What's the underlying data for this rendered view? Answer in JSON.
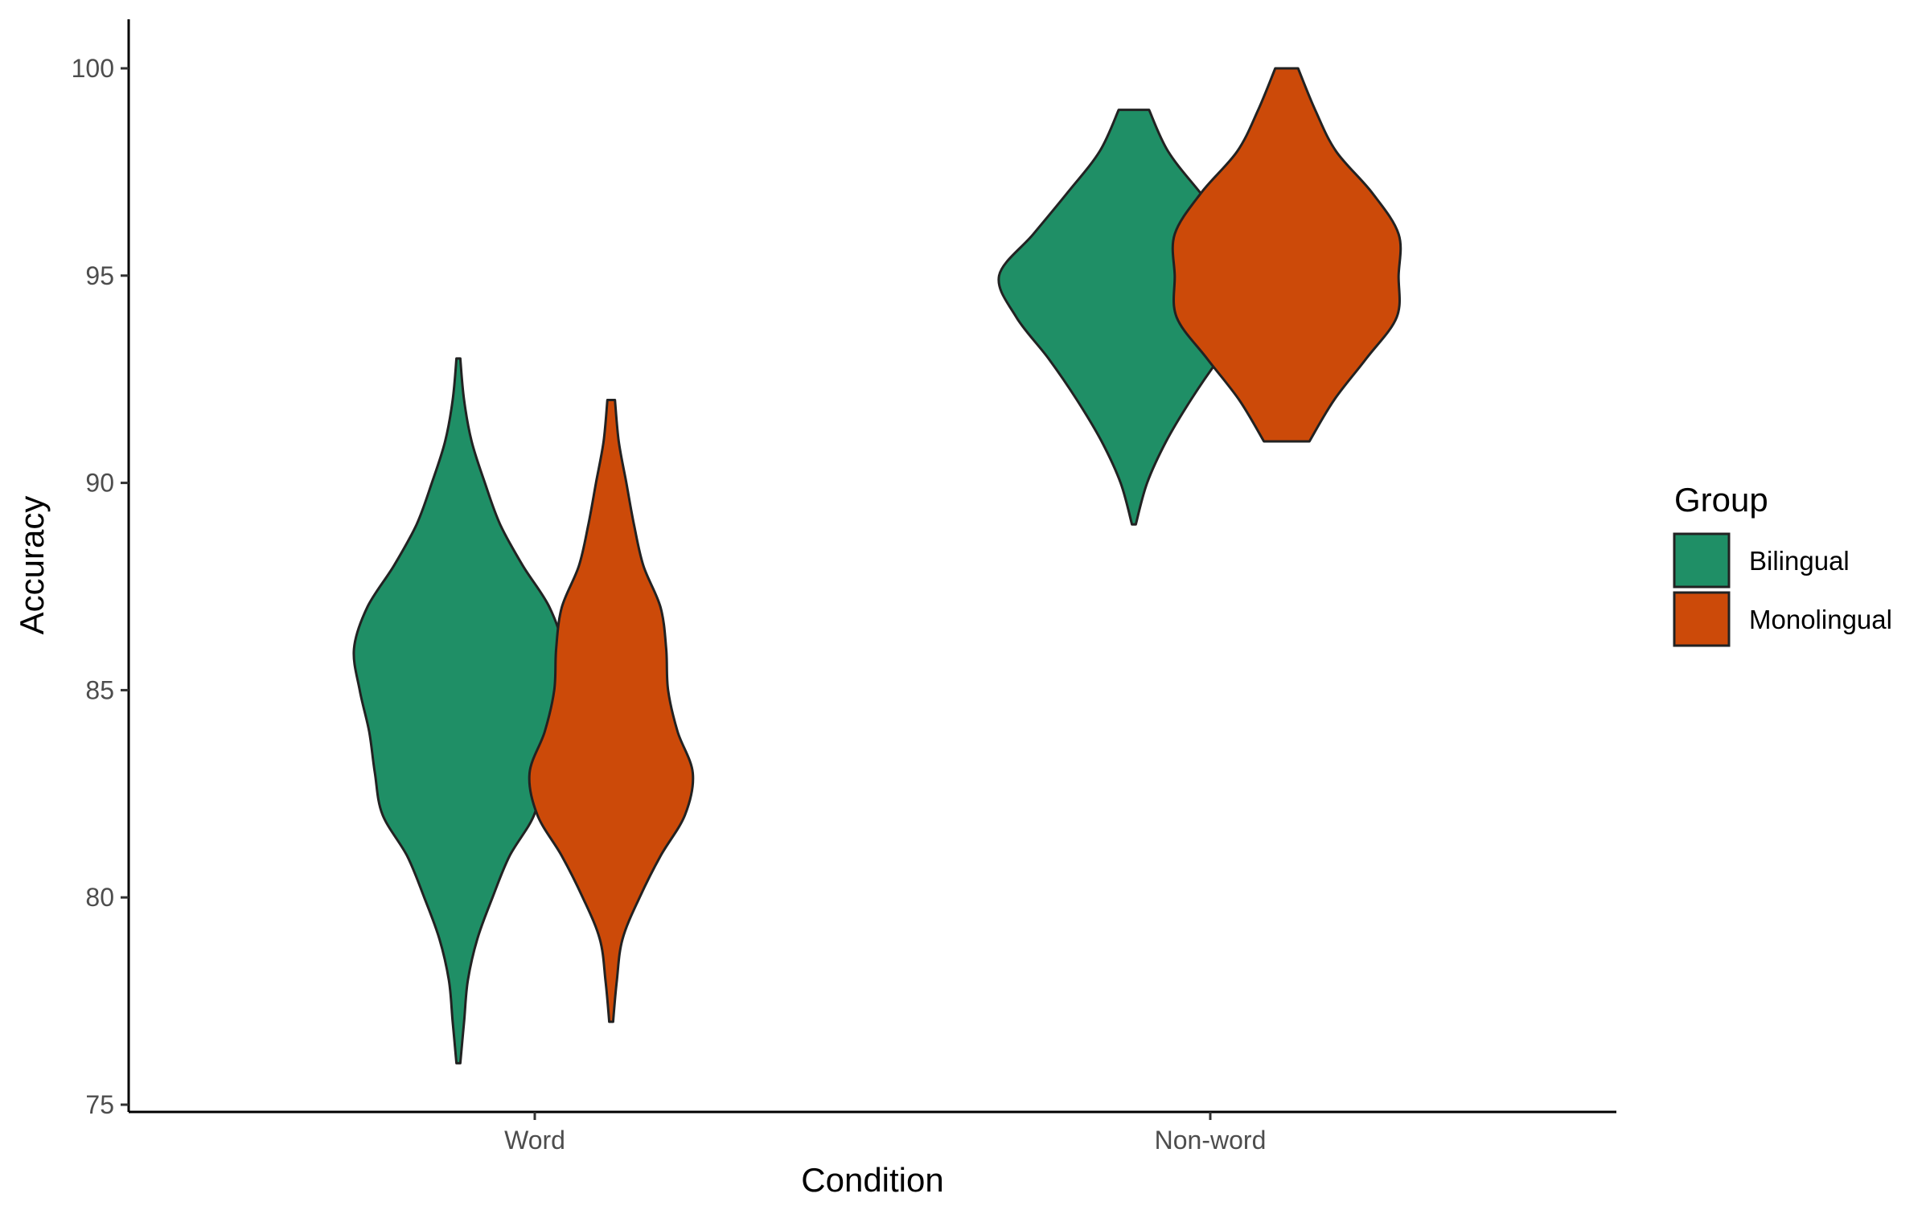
{
  "chart_data": {
    "type": "violin",
    "xlabel": "Condition",
    "ylabel": "Accuracy",
    "categories": [
      "Word",
      "Non-word"
    ],
    "ylim": [
      75,
      100
    ],
    "yticks": [
      75,
      80,
      85,
      90,
      95,
      100
    ],
    "grid": false,
    "legend": {
      "title": "Group",
      "position": "right",
      "entries": [
        {
          "name": "Bilingual",
          "color": "#1f8f66"
        },
        {
          "name": "Monolingual",
          "color": "#cc4a09"
        }
      ]
    },
    "series": [
      {
        "name": "Bilingual",
        "color": "#1f8f66",
        "distributions": [
          {
            "category": "Word",
            "min": 76,
            "max": 93,
            "density": [
              [
                76,
                0.01
              ],
              [
                77,
                0.03
              ],
              [
                78,
                0.05
              ],
              [
                79,
                0.1
              ],
              [
                80,
                0.18
              ],
              [
                81,
                0.27
              ],
              [
                82,
                0.4
              ],
              [
                83,
                0.44
              ],
              [
                84,
                0.47
              ],
              [
                85,
                0.52
              ],
              [
                86,
                0.55
              ],
              [
                87,
                0.48
              ],
              [
                88,
                0.34
              ],
              [
                89,
                0.22
              ],
              [
                90,
                0.14
              ],
              [
                91,
                0.07
              ],
              [
                92,
                0.03
              ],
              [
                93,
                0.01
              ]
            ]
          },
          {
            "category": "Non-word",
            "min": 89,
            "max": 99,
            "density": [
              [
                89,
                0.01
              ],
              [
                90,
                0.07
              ],
              [
                91,
                0.17
              ],
              [
                92,
                0.3
              ],
              [
                93,
                0.45
              ],
              [
                94,
                0.62
              ],
              [
                95,
                0.71
              ],
              [
                96,
                0.53
              ],
              [
                97,
                0.35
              ],
              [
                98,
                0.18
              ],
              [
                99,
                0.08
              ]
            ]
          }
        ]
      },
      {
        "name": "Monolingual",
        "color": "#cc4a09",
        "distributions": [
          {
            "category": "Word",
            "min": 77,
            "max": 92,
            "density": [
              [
                77,
                0.01
              ],
              [
                78,
                0.03
              ],
              [
                79,
                0.06
              ],
              [
                80,
                0.15
              ],
              [
                81,
                0.26
              ],
              [
                82,
                0.39
              ],
              [
                83,
                0.43
              ],
              [
                84,
                0.35
              ],
              [
                85,
                0.3
              ],
              [
                86,
                0.29
              ],
              [
                87,
                0.26
              ],
              [
                88,
                0.17
              ],
              [
                89,
                0.12
              ],
              [
                90,
                0.08
              ],
              [
                91,
                0.04
              ],
              [
                92,
                0.02
              ]
            ]
          },
          {
            "category": "Non-word",
            "min": 91,
            "max": 100,
            "density": [
              [
                91,
                0.12
              ],
              [
                92,
                0.25
              ],
              [
                93,
                0.42
              ],
              [
                94,
                0.58
              ],
              [
                95,
                0.59
              ],
              [
                96,
                0.59
              ],
              [
                97,
                0.45
              ],
              [
                98,
                0.26
              ],
              [
                99,
                0.15
              ],
              [
                100,
                0.06
              ]
            ]
          }
        ]
      }
    ]
  }
}
